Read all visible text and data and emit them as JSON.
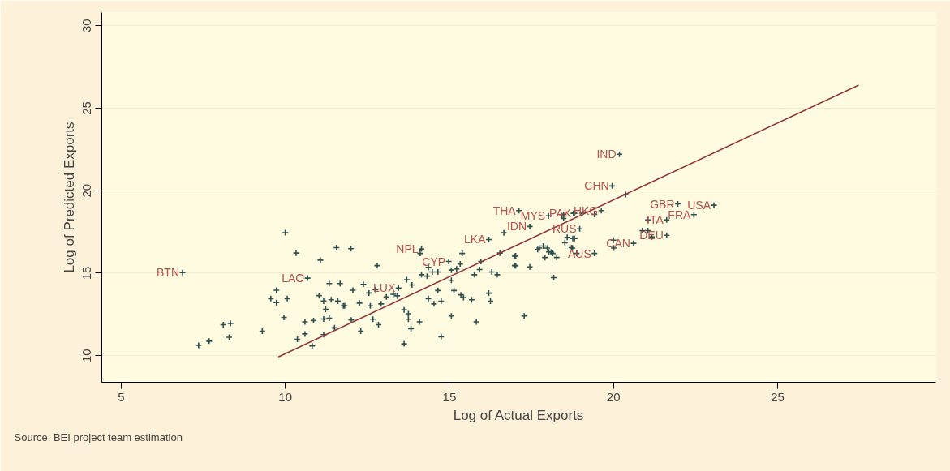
{
  "chart_data": {
    "type": "scatter",
    "xlabel": "Log of Actual Exports",
    "ylabel": "Log of Predicted Exports",
    "xlim": [
      4.41,
      29.82
    ],
    "ylim": [
      8.39,
      30.8
    ],
    "xticks": [
      5,
      10,
      15,
      20,
      25
    ],
    "yticks": [
      10,
      15,
      20,
      25,
      30
    ],
    "grid": "y",
    "annotations": [
      {
        "text": "BTN",
        "x": 6.87,
        "y": 15.04
      },
      {
        "text": "LAO",
        "x": 10.68,
        "y": 14.7
      },
      {
        "text": "LUX",
        "x": 13.45,
        "y": 14.1
      },
      {
        "text": "NPL",
        "x": 14.15,
        "y": 16.47
      },
      {
        "text": "CYP",
        "x": 14.98,
        "y": 15.71
      },
      {
        "text": "LKA",
        "x": 16.2,
        "y": 17.04
      },
      {
        "text": "THA",
        "x": 17.12,
        "y": 18.8
      },
      {
        "text": "MYS",
        "x": 18.02,
        "y": 18.48
      },
      {
        "text": "PAK",
        "x": 18.81,
        "y": 18.63
      },
      {
        "text": "IDN",
        "x": 17.45,
        "y": 17.83
      },
      {
        "text": "RUS",
        "x": 18.97,
        "y": 17.69
      },
      {
        "text": "HKG",
        "x": 19.63,
        "y": 18.8
      },
      {
        "text": "AUS",
        "x": 19.42,
        "y": 16.2
      },
      {
        "text": "IND",
        "x": 20.18,
        "y": 22.21
      },
      {
        "text": "CHN",
        "x": 19.96,
        "y": 20.29
      },
      {
        "text": "ITA",
        "x": 21.62,
        "y": 18.23
      },
      {
        "text": "FRA",
        "x": 22.45,
        "y": 18.55
      },
      {
        "text": "GBR",
        "x": 21.96,
        "y": 19.2
      },
      {
        "text": "USA",
        "x": 23.06,
        "y": 19.12
      },
      {
        "text": "DEU",
        "x": 21.62,
        "y": 17.3
      },
      {
        "text": "CAN",
        "x": 20.61,
        "y": 16.81
      },
      "Source: BEI project team estimation"
    ],
    "series": [
      {
        "color": "#2d4f4f",
        "marker": "cross",
        "x": [
          6.87,
          10.0,
          11.56,
          10.33,
          11.07,
          10.68,
          11.34,
          11.67,
          9.73,
          9.56,
          10.06,
          9.73,
          11.03,
          11.17,
          11.4,
          11.6,
          11.77,
          11.23,
          9.96,
          11.17,
          11.34,
          10.6,
          10.86,
          11.5,
          8.11,
          8.33,
          9.3,
          8.29,
          7.36,
          7.68,
          10.37,
          10.6,
          11.17,
          10.82,
          12.0,
          12.8,
          12.06,
          12.38,
          12.75,
          12.55,
          13.08,
          13.29,
          13.41,
          13.7,
          13.86,
          11.81,
          12.26,
          12.59,
          12.92,
          12.01,
          12.67,
          12.84,
          12.3,
          13.62,
          13.75,
          13.75,
          13.83,
          14.09,
          13.62,
          14.75,
          15.06,
          15.82,
          17.28,
          14.36,
          14.53,
          14.75,
          14.65,
          15.14,
          15.35,
          15.43,
          15.68,
          16.2,
          16.25,
          14.15,
          14.11,
          14.36,
          14.15,
          14.32,
          14.48,
          14.65,
          14.98,
          15.39,
          15.33,
          15.06,
          15.22,
          15.06,
          15.76,
          15.92,
          15.96,
          16.29,
          16.46,
          16.2,
          16.66,
          16.54,
          17.02,
          17.02,
          17.45,
          18.18,
          17.74,
          17.86,
          18.03,
          18.15,
          18.27,
          17.91,
          17.45,
          17.12,
          18.52,
          18.72,
          18.88,
          18.59,
          18.81,
          18.43,
          18.81,
          20.18,
          19.96,
          20.37,
          21.96,
          23.06,
          22.45,
          21.05,
          21.62,
          20.88,
          21.05,
          21.17,
          21.62,
          20.61,
          20.0,
          20.01,
          19.42,
          19.63,
          19.42,
          19.05,
          18.78,
          18.48,
          18.48,
          18.02,
          18.97,
          18.76,
          18.75,
          17.69,
          17.98,
          18.1,
          16.99,
          16.99,
          13.45
        ],
        "values": [
          15.04,
          17.46,
          16.55,
          16.22,
          15.79,
          14.7,
          14.37,
          14.37,
          13.97,
          13.46,
          13.46,
          13.22,
          13.64,
          13.31,
          13.39,
          13.31,
          13.02,
          12.81,
          12.32,
          12.22,
          12.27,
          12.05,
          12.13,
          11.69,
          11.88,
          11.96,
          11.48,
          11.12,
          10.63,
          10.88,
          10.99,
          11.32,
          11.28,
          10.59,
          16.49,
          15.46,
          13.97,
          14.32,
          14.0,
          13.8,
          13.56,
          13.72,
          13.63,
          14.61,
          14.29,
          13.02,
          13.19,
          13.02,
          13.14,
          12.16,
          12.21,
          11.88,
          11.48,
          12.78,
          12.54,
          12.21,
          11.64,
          12.05,
          10.72,
          11.15,
          12.41,
          12.05,
          12.41,
          13.46,
          13.14,
          13.3,
          13.95,
          13.95,
          13.69,
          13.52,
          13.39,
          13.79,
          13.3,
          16.47,
          16.2,
          15.35,
          14.91,
          14.82,
          15.07,
          15.07,
          15.71,
          16.2,
          15.56,
          15.19,
          15.26,
          14.57,
          14.91,
          15.22,
          15.71,
          15.07,
          14.91,
          17.04,
          17.45,
          16.22,
          16.06,
          15.46,
          15.38,
          14.73,
          16.52,
          16.65,
          16.29,
          16.2,
          15.95,
          15.95,
          17.83,
          18.8,
          16.85,
          16.55,
          16.2,
          17.17,
          17.1,
          18.48,
          18.63,
          22.21,
          20.29,
          19.77,
          19.2,
          19.12,
          18.55,
          18.23,
          18.23,
          17.58,
          17.58,
          17.2,
          17.3,
          16.81,
          17.0,
          16.52,
          16.2,
          18.8,
          18.56,
          18.63,
          18.63,
          18.56,
          18.32,
          18.48,
          17.69,
          17.1,
          16.52,
          16.44,
          16.52,
          16.28,
          16.03,
          15.46,
          14.1
        ]
      },
      {
        "type": "line",
        "color": "#90353b",
        "x": [
          9.79,
          27.47
        ],
        "values": [
          9.93,
          26.4
        ]
      }
    ]
  }
}
